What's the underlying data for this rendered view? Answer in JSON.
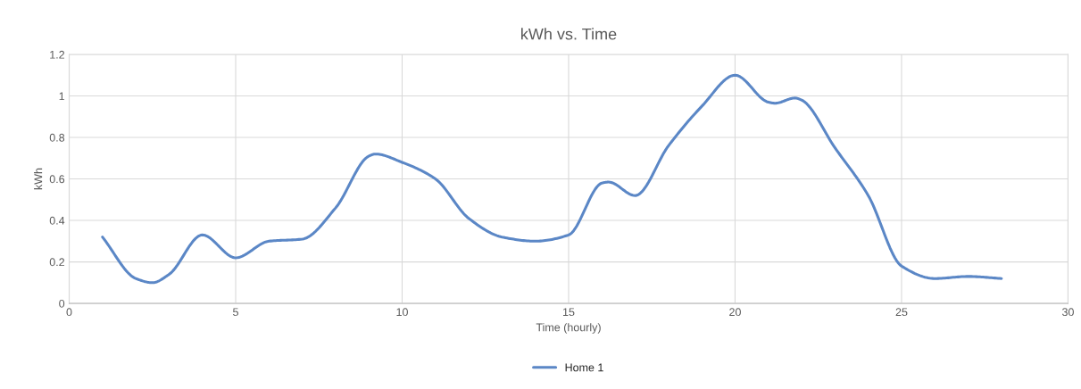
{
  "chart_data": {
    "type": "line",
    "title": "kWh vs. Time",
    "xlabel": "Time (hourly)",
    "ylabel": "kWh",
    "x": [
      1,
      2,
      2.5,
      3,
      4,
      5,
      6,
      7,
      8,
      9,
      9.2,
      10,
      11,
      12,
      13,
      14,
      15,
      16,
      16.2,
      17,
      18,
      19,
      20,
      21,
      21.2,
      21.8,
      22,
      23,
      24,
      25,
      26,
      27,
      28
    ],
    "series": [
      {
        "name": "Home 1",
        "color": "#5b87c6",
        "values": [
          0.32,
          0.12,
          0.1,
          0.14,
          0.33,
          0.22,
          0.3,
          0.31,
          0.46,
          0.71,
          0.72,
          0.68,
          0.6,
          0.41,
          0.32,
          0.3,
          0.33,
          0.58,
          0.585,
          0.52,
          0.76,
          0.95,
          1.1,
          0.97,
          0.965,
          0.99,
          0.98,
          0.75,
          0.52,
          0.18,
          0.12,
          0.13,
          0.12
        ]
      }
    ],
    "xlim": [
      0,
      30
    ],
    "xticks": [
      0,
      5,
      10,
      15,
      20,
      25,
      30
    ],
    "ylim": [
      0,
      1.2
    ],
    "yticks": [
      0,
      0.2,
      0.4,
      0.6,
      0.8,
      1,
      1.2
    ],
    "grid": true,
    "legend": "bottom",
    "marker": "none",
    "line_style": "solid"
  }
}
